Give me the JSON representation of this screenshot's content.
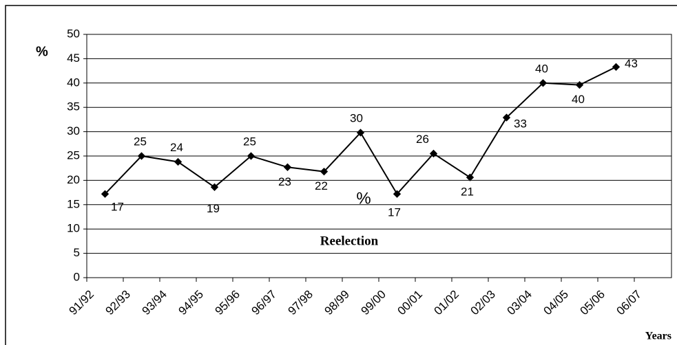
{
  "chart_data": {
    "type": "line",
    "y_label": "%",
    "x_label": "Years",
    "annotations": [
      "%",
      "Reelection"
    ],
    "categories": [
      "91/92",
      "92/93",
      "93/94",
      "94/95",
      "95/96",
      "96/97",
      "97/98",
      "98/99",
      "99/00",
      "00/01",
      "01/02",
      "02/03",
      "03/04",
      "04/05",
      "05/06",
      "06/07"
    ],
    "series": [
      {
        "color": "#000000",
        "values": [
          17.2,
          25,
          23.8,
          18.6,
          25,
          22.7,
          21.8,
          29.8,
          17.2,
          25.5,
          20.6,
          32.9,
          40,
          39.6,
          43.3,
          null
        ],
        "value_labels": [
          "17",
          "25",
          "24",
          "19",
          "25",
          "23",
          "22",
          "30",
          "17",
          "26",
          "21",
          "33",
          "40",
          "40",
          "43",
          null
        ]
      }
    ],
    "ylim": [
      0,
      50
    ],
    "yticks": [
      0,
      5,
      10,
      15,
      20,
      25,
      30,
      35,
      40,
      45,
      50
    ],
    "grid": true
  }
}
